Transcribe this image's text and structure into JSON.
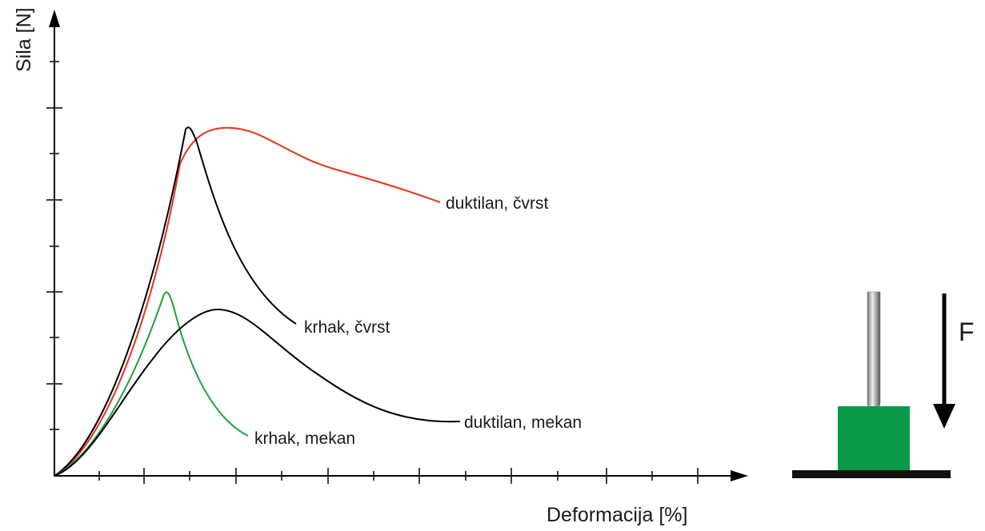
{
  "axes": {
    "y_title": "Sila [N]",
    "x_title": "Deformacija [%]"
  },
  "curves": [
    {
      "label": "duktilan, čvrst"
    },
    {
      "label": "krhak, čvrst"
    },
    {
      "label": "duktilan, mekan"
    },
    {
      "label": "krhak, mekan"
    }
  ],
  "test": {
    "force_label": "F"
  }
}
